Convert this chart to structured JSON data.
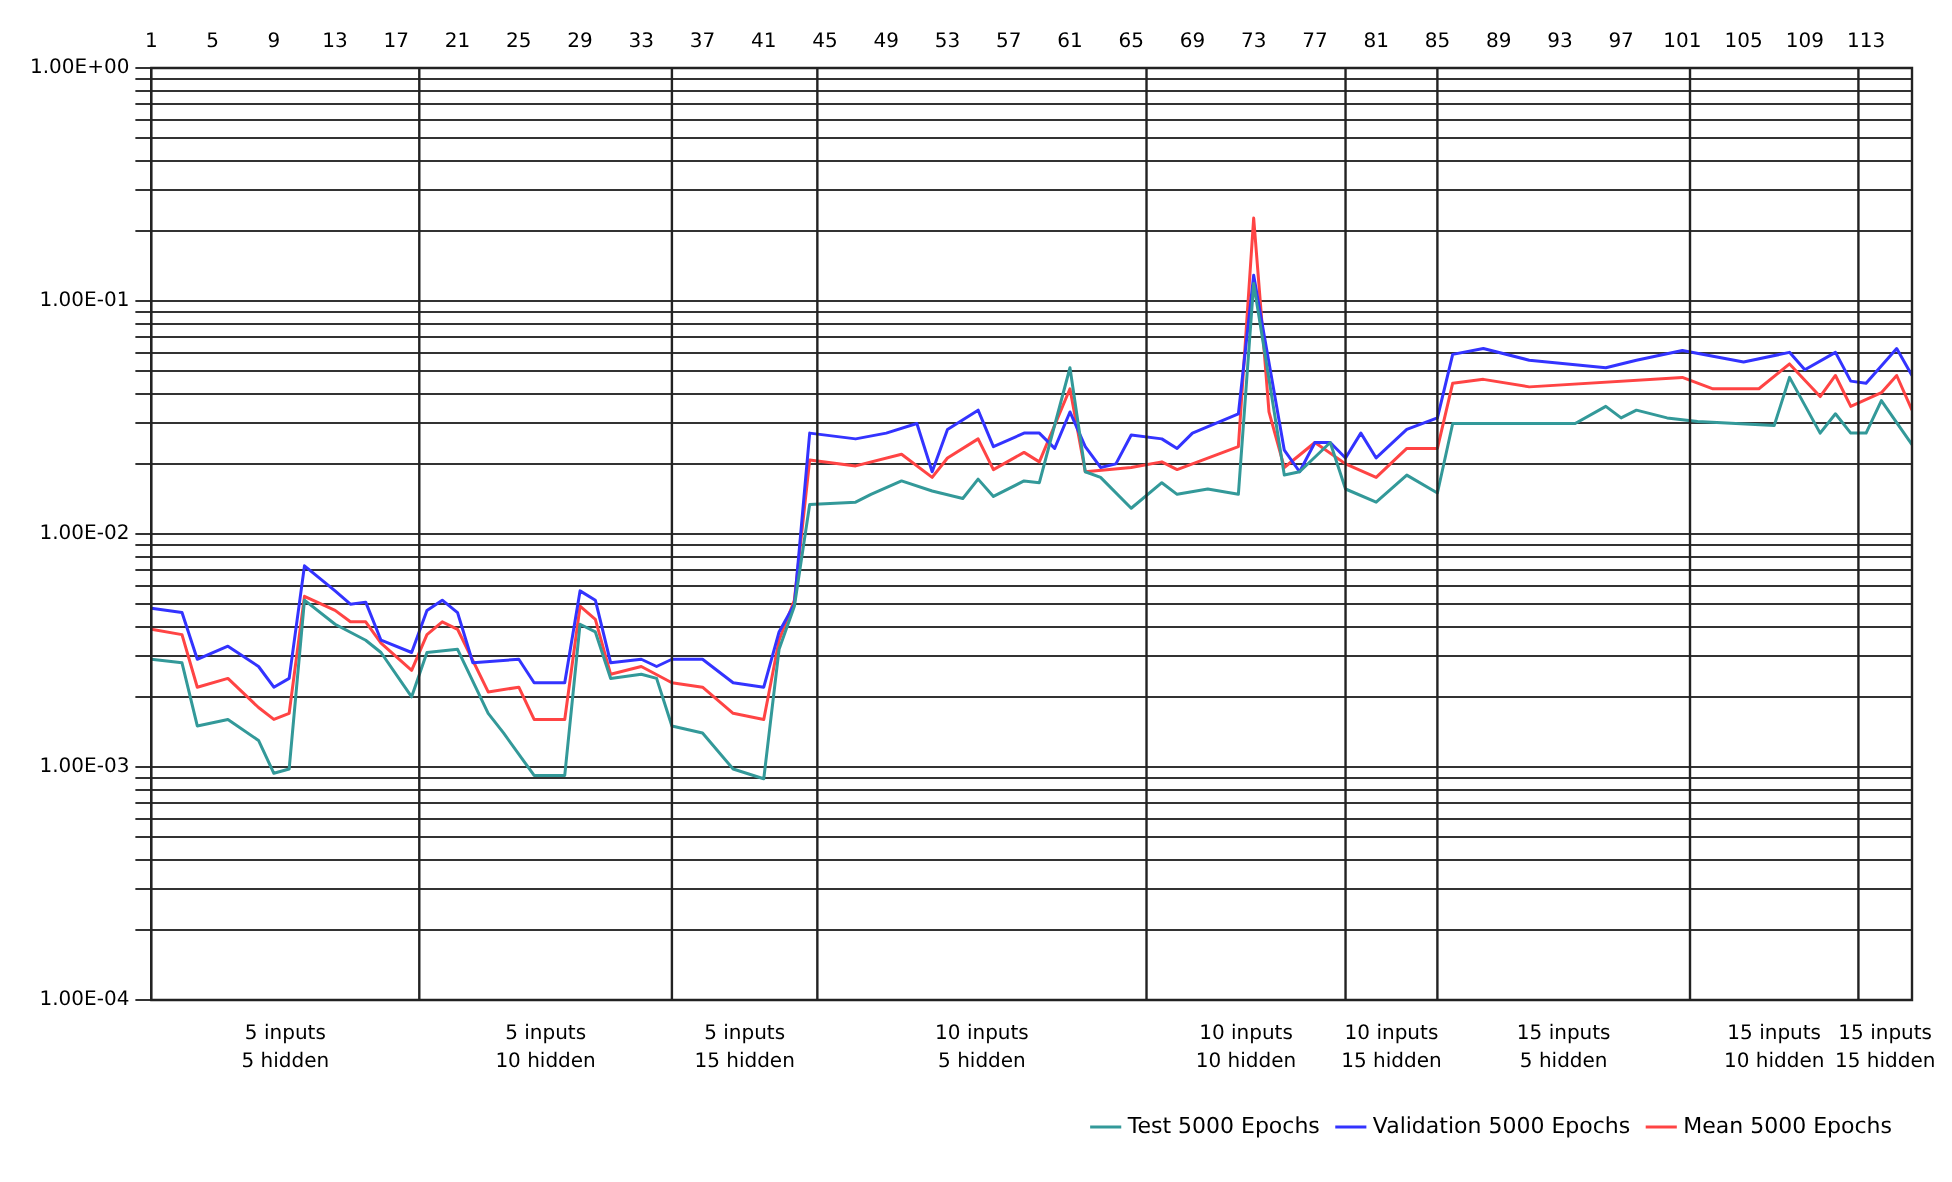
{
  "chart_data": {
    "type": "line",
    "xlim": [
      1,
      116
    ],
    "xticks": [
      1,
      5,
      9,
      13,
      17,
      21,
      25,
      29,
      33,
      37,
      41,
      45,
      49,
      53,
      57,
      61,
      65,
      69,
      73,
      77,
      81,
      85,
      89,
      93,
      97,
      101,
      105,
      109,
      113
    ],
    "ylim": [
      0.0001,
      1
    ],
    "yticks": [
      {
        "value": 0.0001,
        "label": "1.00E-04"
      },
      {
        "value": 0.0002,
        "label": null
      },
      {
        "value": 0.0003,
        "label": null
      },
      {
        "value": 0.0004,
        "label": null
      },
      {
        "value": 0.0005,
        "label": null
      },
      {
        "value": 0.0006,
        "label": null
      },
      {
        "value": 0.0007,
        "label": null
      },
      {
        "value": 0.0008,
        "label": null
      },
      {
        "value": 0.0009,
        "label": null
      },
      {
        "value": 0.001,
        "label": "1.00E-03"
      },
      {
        "value": 0.002,
        "label": null
      },
      {
        "value": 0.003,
        "label": null
      },
      {
        "value": 0.004,
        "label": null
      },
      {
        "value": 0.005,
        "label": null
      },
      {
        "value": 0.006,
        "label": null
      },
      {
        "value": 0.007,
        "label": null
      },
      {
        "value": 0.008,
        "label": null
      },
      {
        "value": 0.009,
        "label": null
      },
      {
        "value": 0.01,
        "label": "1.00E-02"
      },
      {
        "value": 0.02,
        "label": null
      },
      {
        "value": 0.03,
        "label": null
      },
      {
        "value": 0.04,
        "label": null
      },
      {
        "value": 0.05,
        "label": null
      },
      {
        "value": 0.06,
        "label": null
      },
      {
        "value": 0.07,
        "label": null
      },
      {
        "value": 0.08,
        "label": null
      },
      {
        "value": 0.09,
        "label": null
      },
      {
        "value": 0.1,
        "label": "1.00E-01"
      },
      {
        "value": 0.2,
        "label": null
      },
      {
        "value": 0.3,
        "label": null
      },
      {
        "value": 0.4,
        "label": null
      },
      {
        "value": 0.5,
        "label": null
      },
      {
        "value": 0.6,
        "label": null
      },
      {
        "value": 0.7,
        "label": null
      },
      {
        "value": 0.8,
        "label": null
      },
      {
        "value": 0.9,
        "label": null
      },
      {
        "value": 1,
        "label": "1.00E+00"
      }
    ],
    "log": "y",
    "grid": "y",
    "legend": "bottom right",
    "marker": "none",
    "line_style": "solid",
    "ref_lines": [
      {
        "axis": "x",
        "value": 18.5,
        "color": "#222222"
      },
      {
        "axis": "x",
        "value": 35,
        "color": "#222222"
      },
      {
        "axis": "x",
        "value": 44.5,
        "color": "#222222"
      },
      {
        "axis": "x",
        "value": 66,
        "color": "#222222"
      },
      {
        "axis": "x",
        "value": 79,
        "color": "#222222"
      },
      {
        "axis": "x",
        "value": 85,
        "color": "#222222"
      },
      {
        "axis": "x",
        "value": 101.5,
        "color": "#222222"
      },
      {
        "axis": "x",
        "value": 112.5,
        "color": "#222222"
      }
    ],
    "annotations": [
      "5 inputs\n5 hidden",
      "5 inputs\n10 hidden",
      "5 inputs\n15 hidden",
      "10 inputs\n5 hidden",
      "10 inputs\n10 hidden",
      "10 inputs\n15 hidden",
      "15 inputs\n5 hidden",
      "15 inputs\n10 hidden",
      "15 inputs\n15 hidden"
    ],
    "series": [
      {
        "name": "Test 5000 Epochs",
        "color": "#339999",
        "x": [
          1,
          3,
          4,
          6,
          8,
          9,
          10,
          11,
          13,
          15,
          16,
          18,
          19,
          21,
          23,
          24,
          26,
          28,
          29,
          30,
          31,
          33,
          34,
          35,
          37,
          39,
          41,
          42,
          43,
          44,
          47,
          48,
          50,
          52,
          54,
          55,
          56,
          58,
          59,
          61,
          62,
          63,
          65,
          67,
          68,
          70,
          72,
          73,
          75,
          76,
          78,
          79,
          81,
          83,
          85,
          86,
          94,
          96,
          97,
          98,
          100,
          102,
          107,
          108,
          110,
          111,
          112,
          113,
          114,
          116
        ],
        "values": [
          0.0029,
          0.0028,
          0.0015,
          0.0016,
          0.0013,
          0.00094,
          0.00098,
          0.0052,
          0.0041,
          0.0035,
          0.0031,
          0.002,
          0.0031,
          0.0032,
          0.0017,
          0.0014,
          0.00092,
          0.00092,
          0.0041,
          0.0038,
          0.0024,
          0.0025,
          0.0024,
          0.0015,
          0.0014,
          0.00098,
          0.00089,
          0.0032,
          0.0049,
          0.0134,
          0.0137,
          0.0148,
          0.0169,
          0.0153,
          0.0142,
          0.0172,
          0.0145,
          0.0169,
          0.0166,
          0.0517,
          0.0185,
          0.0175,
          0.0129,
          0.0166,
          0.0148,
          0.0156,
          0.0148,
          0.119,
          0.0179,
          0.0185,
          0.0247,
          0.0156,
          0.0137,
          0.0179,
          0.015,
          0.0298,
          0.0298,
          0.0353,
          0.0315,
          0.034,
          0.0315,
          0.0304,
          0.0292,
          0.047,
          0.0271,
          0.0328,
          0.0271,
          0.0271,
          0.0374,
          0.0242
        ]
      },
      {
        "name": "Validation 5000 Epochs",
        "color": "#3333ff",
        "x": [
          1,
          3,
          4,
          6,
          8,
          9,
          10,
          11,
          13,
          14,
          15,
          16,
          18,
          19,
          20,
          21,
          22,
          25,
          26,
          28,
          29,
          30,
          31,
          33,
          34,
          35,
          37,
          39,
          41,
          42,
          43,
          44,
          47,
          49,
          51,
          52,
          53,
          55,
          56,
          58,
          59,
          60,
          61,
          62,
          63,
          64,
          65,
          67,
          68,
          69,
          72,
          73,
          75,
          76,
          77,
          78,
          79,
          80,
          81,
          83,
          85,
          86,
          88,
          91,
          96,
          98,
          101,
          105,
          108,
          109,
          111,
          112,
          113,
          115,
          116
        ],
        "values": [
          0.0048,
          0.0046,
          0.0029,
          0.0033,
          0.0027,
          0.0022,
          0.0024,
          0.0073,
          0.0057,
          0.005,
          0.0051,
          0.0035,
          0.0031,
          0.0047,
          0.0052,
          0.0046,
          0.0028,
          0.0029,
          0.0023,
          0.0023,
          0.0057,
          0.0052,
          0.0028,
          0.0029,
          0.0027,
          0.0029,
          0.0029,
          0.0023,
          0.0022,
          0.0038,
          0.005,
          0.0271,
          0.0256,
          0.0271,
          0.0298,
          0.0185,
          0.0281,
          0.034,
          0.0237,
          0.0271,
          0.0271,
          0.0233,
          0.0334,
          0.0237,
          0.0193,
          0.02,
          0.0266,
          0.0256,
          0.0233,
          0.0271,
          0.0328,
          0.129,
          0.0229,
          0.0185,
          0.0247,
          0.0247,
          0.0212,
          0.0271,
          0.0212,
          0.0281,
          0.0315,
          0.059,
          0.0625,
          0.0557,
          0.0517,
          0.0557,
          0.0613,
          0.0547,
          0.0602,
          0.0507,
          0.0602,
          0.0453,
          0.0444,
          0.0625,
          0.0479
        ]
      },
      {
        "name": "Mean 5000 Epochs",
        "color": "#ff4444",
        "x": [
          1,
          3,
          4,
          6,
          8,
          9,
          10,
          11,
          13,
          14,
          15,
          16,
          18,
          19,
          20,
          21,
          23,
          25,
          26,
          28,
          29,
          30,
          31,
          33,
          35,
          37,
          39,
          41,
          42,
          43,
          44,
          47,
          50,
          52,
          53,
          55,
          56,
          58,
          59,
          61,
          62,
          65,
          67,
          68,
          72,
          73,
          74,
          75,
          77,
          79,
          81,
          83,
          85,
          86,
          88,
          91,
          101,
          103,
          106,
          108,
          110,
          111,
          112,
          114,
          115,
          116
        ],
        "values": [
          0.0039,
          0.0037,
          0.0022,
          0.0024,
          0.0018,
          0.0016,
          0.0017,
          0.0054,
          0.0047,
          0.0042,
          0.0042,
          0.0034,
          0.0026,
          0.0037,
          0.0042,
          0.0039,
          0.0021,
          0.0022,
          0.0016,
          0.0016,
          0.0049,
          0.0043,
          0.0025,
          0.0027,
          0.0023,
          0.0022,
          0.0017,
          0.0016,
          0.0035,
          0.0052,
          0.0208,
          0.0196,
          0.022,
          0.0175,
          0.0212,
          0.0256,
          0.0189,
          0.0224,
          0.0204,
          0.042,
          0.0185,
          0.0193,
          0.0204,
          0.0189,
          0.0237,
          0.227,
          0.0334,
          0.0193,
          0.0247,
          0.02,
          0.0175,
          0.0233,
          0.0233,
          0.0444,
          0.0461,
          0.0428,
          0.047,
          0.042,
          0.042,
          0.0537,
          0.0389,
          0.0479,
          0.0353,
          0.0404,
          0.0479,
          0.034
        ]
      }
    ]
  }
}
